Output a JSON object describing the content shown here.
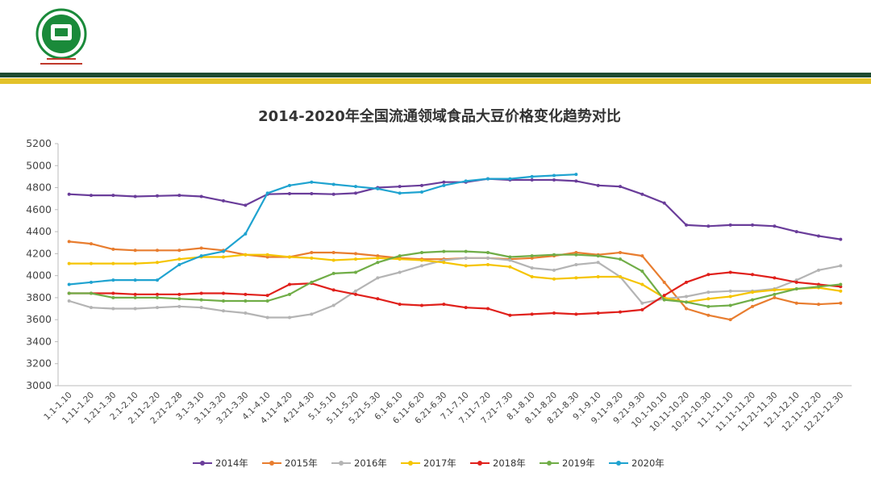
{
  "chart_data": {
    "type": "line",
    "title": "2014-2020年全国流通领域食品大豆价格变化趋势对比",
    "categories": [
      "1.1-1.10",
      "1.11-1.20",
      "1.21-1.30",
      "2.1-2.10",
      "2.11-2.20",
      "2.21-2.28",
      "3.1-3.10",
      "3.11-3.20",
      "3.21-3.30",
      "4.1-4.10",
      "4.11-4.20",
      "4.21-4.30",
      "5.1-5.10",
      "5.11-5.20",
      "5.21-5.30",
      "6.1-6.10",
      "6.11-6.20",
      "6.21-6.30",
      "7.1-7.10",
      "7.11-7.20",
      "7.21-7.30",
      "8.1-8.10",
      "8.11-8.20",
      "8.21-8.30",
      "9.1-9.10",
      "9.11-9.20",
      "9.21-9.30",
      "10.1-10.10",
      "10.11-10.20",
      "10.21-10.30",
      "11.1-11.10",
      "11.11-11.20",
      "11.21-11.30",
      "12.1-12.10",
      "12.11-12.20",
      "12.21-12.30"
    ],
    "series": [
      {
        "name": "2014年",
        "color": "#6a3d9a",
        "values": [
          4740,
          4730,
          4730,
          4720,
          4725,
          4730,
          4720,
          4680,
          4640,
          4740,
          4745,
          4745,
          4740,
          4750,
          4800,
          4810,
          4820,
          4850,
          4850,
          4880,
          4870,
          4870,
          4870,
          4860,
          4820,
          4810,
          4740,
          4660,
          4460,
          4450,
          4460,
          4460,
          4450,
          4400,
          4360,
          4330
        ]
      },
      {
        "name": "2015年",
        "color": "#e87d2f",
        "values": [
          4310,
          4290,
          4240,
          4230,
          4230,
          4230,
          4250,
          4230,
          4190,
          4170,
          4170,
          4210,
          4210,
          4200,
          4180,
          4160,
          4150,
          4150,
          4160,
          4160,
          4150,
          4160,
          4180,
          4210,
          4190,
          4210,
          4180,
          3940,
          3700,
          3640,
          3600,
          3720,
          3800,
          3750,
          3740,
          3750
        ]
      },
      {
        "name": "2016年",
        "color": "#b4b4b4",
        "values": [
          3770,
          3710,
          3700,
          3700,
          3710,
          3720,
          3710,
          3680,
          3660,
          3620,
          3620,
          3650,
          3730,
          3860,
          3980,
          4030,
          4090,
          4140,
          4160,
          4160,
          4140,
          4070,
          4050,
          4100,
          4120,
          3990,
          3750,
          3790,
          3810,
          3850,
          3860,
          3860,
          3880,
          3960,
          4050,
          4090
        ]
      },
      {
        "name": "2017年",
        "color": "#f5c400",
        "values": [
          4110,
          4110,
          4110,
          4110,
          4120,
          4150,
          4170,
          4170,
          4190,
          4190,
          4170,
          4160,
          4140,
          4150,
          4160,
          4150,
          4140,
          4120,
          4090,
          4100,
          4080,
          3990,
          3970,
          3980,
          3990,
          3990,
          3920,
          3800,
          3760,
          3790,
          3810,
          3850,
          3870,
          3880,
          3890,
          3860
        ]
      },
      {
        "name": "2018年",
        "color": "#e0201b",
        "values": [
          3840,
          3840,
          3840,
          3830,
          3830,
          3830,
          3840,
          3840,
          3830,
          3820,
          3920,
          3930,
          3870,
          3830,
          3790,
          3740,
          3730,
          3740,
          3710,
          3700,
          3640,
          3650,
          3660,
          3650,
          3660,
          3670,
          3690,
          3820,
          3940,
          4010,
          4030,
          4010,
          3980,
          3940,
          3920,
          3900
        ]
      },
      {
        "name": "2019年",
        "color": "#70ad47",
        "values": [
          3840,
          3840,
          3800,
          3800,
          3800,
          3790,
          3780,
          3770,
          3770,
          3770,
          3830,
          3940,
          4020,
          4030,
          4120,
          4180,
          4210,
          4220,
          4220,
          4210,
          4170,
          4180,
          4190,
          4190,
          4180,
          4150,
          4040,
          3780,
          3760,
          3720,
          3730,
          3780,
          3830,
          3880,
          3900,
          3920
        ]
      },
      {
        "name": "2020年",
        "color": "#1fa3d0",
        "values": [
          3920,
          3940,
          3960,
          3960,
          3960,
          4100,
          4180,
          4220,
          4380,
          4750,
          4820,
          4850,
          4830,
          4810,
          4790,
          4750,
          4760,
          4820,
          4860,
          4880,
          4880,
          4900,
          4910,
          4920,
          null,
          null,
          null,
          null,
          null,
          null,
          null,
          null,
          null,
          null,
          null,
          null
        ]
      }
    ],
    "ylim": [
      3000,
      5200
    ],
    "yticks": [
      3000,
      3200,
      3400,
      3600,
      3800,
      4000,
      4200,
      4400,
      4600,
      4800,
      5000,
      5200
    ],
    "legend": "bottom"
  }
}
